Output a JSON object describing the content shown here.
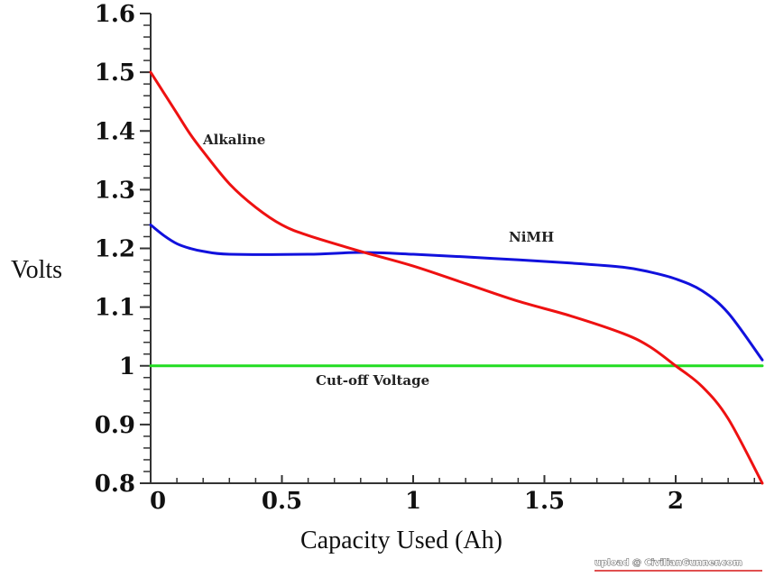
{
  "chart_data": {
    "type": "line",
    "title": "",
    "xlabel": "Capacity Used (Ah)",
    "ylabel": "Volts",
    "xlim": [
      0,
      2.33
    ],
    "ylim": [
      0.8,
      1.6
    ],
    "grid": false,
    "xticks": [
      0,
      0.5,
      1,
      1.5,
      2
    ],
    "xtick_labels": [
      "0",
      "0.5",
      "1",
      "1.5",
      "2"
    ],
    "xminor_step": 0.1,
    "yticks": [
      0.8,
      0.9,
      1.0,
      1.1,
      1.2,
      1.3,
      1.4,
      1.5,
      1.6
    ],
    "ytick_labels": [
      "0.8",
      "0.9",
      "1",
      "1.1",
      "1.2",
      "1.3",
      "1.4",
      "1.5",
      "1.6"
    ],
    "yminor_step": 0.02,
    "series": [
      {
        "name": "Alkaline",
        "color": "#ee1111",
        "x": [
          0,
          0.05,
          0.1,
          0.15,
          0.2,
          0.3,
          0.4,
          0.5,
          0.6,
          0.8,
          1.0,
          1.2,
          1.4,
          1.6,
          1.8,
          1.9,
          2.0,
          2.1,
          2.2,
          2.33
        ],
        "y": [
          1.5,
          1.465,
          1.43,
          1.395,
          1.365,
          1.31,
          1.27,
          1.24,
          1.222,
          1.195,
          1.17,
          1.14,
          1.11,
          1.085,
          1.055,
          1.033,
          1.0,
          0.965,
          0.91,
          0.8
        ]
      },
      {
        "name": "NiMH",
        "color": "#1111dd",
        "x": [
          0,
          0.05,
          0.1,
          0.15,
          0.2,
          0.3,
          0.6,
          0.8,
          1.0,
          1.3,
          1.6,
          1.8,
          1.9,
          2.0,
          2.1,
          2.2,
          2.33
        ],
        "y": [
          1.24,
          1.222,
          1.208,
          1.2,
          1.195,
          1.19,
          1.19,
          1.193,
          1.19,
          1.183,
          1.175,
          1.168,
          1.16,
          1.148,
          1.128,
          1.09,
          1.01
        ]
      },
      {
        "name": "Cut-off Voltage",
        "color": "#22dd22",
        "x": [
          0,
          2.33
        ],
        "y": [
          1.0,
          1.0
        ]
      }
    ],
    "annotations": [
      {
        "text": "Alkaline",
        "x": 0.33,
        "y": 1.41
      },
      {
        "text": "NiMH",
        "x": 1.37,
        "y": 1.2
      },
      {
        "text": "Cut-off Voltage",
        "x": 0.63,
        "y": 0.965
      }
    ]
  },
  "watermark": {
    "text": "upload @ CivilianGunner.com",
    "underline_color": "#e05050"
  }
}
